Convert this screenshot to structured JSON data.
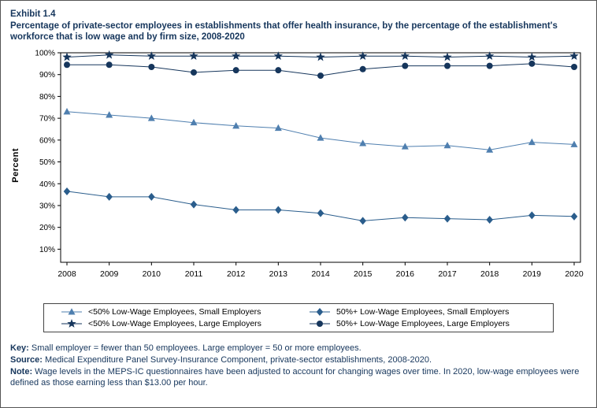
{
  "page": {
    "exhibit_label": "Exhibit 1.4",
    "title": "Percentage of private-sector employees in establishments that offer health insurance, by the percentage of the establishment's workforce that is low wage and by firm size,  2008-2020"
  },
  "chart_data": {
    "type": "line",
    "title": "Percentage of private-sector employees in establishments that offer health insurance, by the percentage of the establishment's workforce that is low wage and by firm size, 2008-2020",
    "xlabel": "",
    "ylabel": "Percent",
    "x": [
      2008,
      2009,
      2010,
      2011,
      2012,
      2013,
      2014,
      2015,
      2016,
      2017,
      2018,
      2019,
      2020
    ],
    "ylim": [
      4,
      100
    ],
    "yticks": [
      10,
      20,
      30,
      40,
      50,
      60,
      70,
      80,
      90,
      100
    ],
    "grid": false,
    "legend_position": "bottom",
    "series": [
      {
        "name": "<50% Low-Wage Employees, Small Employers",
        "marker": "triangle",
        "color": "#4f7faf",
        "values": [
          73,
          71.5,
          70,
          68,
          66.5,
          65.5,
          61,
          58.5,
          57,
          57.5,
          55.5,
          59,
          58
        ]
      },
      {
        "name": "50%+ Low-Wage Employees, Small Employers",
        "marker": "diamond",
        "color": "#2a5d8c",
        "values": [
          36.5,
          34,
          34,
          30.5,
          28,
          28,
          26.5,
          23,
          24.5,
          24,
          23.5,
          25.5,
          25
        ]
      },
      {
        "name": "<50% Low-Wage Employees, Large Employers",
        "marker": "star",
        "color": "#16365c",
        "values": [
          98,
          99,
          98.5,
          98.5,
          98.5,
          98.5,
          98,
          98.5,
          98.5,
          98,
          98.5,
          98,
          98.5
        ]
      },
      {
        "name": "50%+ Low-Wage Employees, Large Employers",
        "marker": "circle",
        "color": "#16365c",
        "values": [
          94.5,
          94.5,
          93.5,
          91,
          92,
          92,
          89.5,
          92.5,
          94,
          94,
          94,
          95,
          93.5
        ]
      }
    ]
  },
  "footer": {
    "key_label": "Key:",
    "key_text": " Small employer = fewer than 50 employees. Large employer = 50 or more employees.",
    "source_label": "Source:",
    "source_text": " Medical Expenditure Panel Survey-Insurance Component, private-sector establishments, 2008-2020.",
    "note_label": "Note:",
    "note_text": " Wage levels in the MEPS-IC questionnaires have been adjusted to account for changing wages over time. In 2020, low-wage employees were defined as those earning less than $13.00 per hour."
  }
}
